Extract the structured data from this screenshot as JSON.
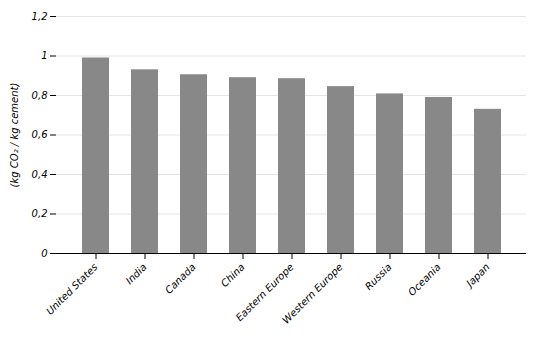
{
  "chart_data": {
    "type": "bar",
    "categories": [
      "United States",
      "India",
      "Canada",
      "China",
      "Eastern Europe",
      "Western Europe",
      "Russia",
      "Oceania",
      "Japan"
    ],
    "values": [
      0.99,
      0.93,
      0.905,
      0.89,
      0.885,
      0.845,
      0.808,
      0.79,
      0.73
    ],
    "color": "#888888",
    "ylabel": "(kg CO₂ / kg cement)",
    "ylim": [
      0,
      1.2
    ],
    "yticks": [
      0,
      {
        "value": 0.2,
        "label": "0,2"
      },
      {
        "value": 0.4,
        "label": "0,4"
      },
      {
        "value": 0.6,
        "label": "0,6"
      },
      {
        "value": 0.8,
        "label": "0,8"
      },
      1,
      {
        "value": 1.2,
        "label": "1,2"
      }
    ],
    "grid": true
  }
}
